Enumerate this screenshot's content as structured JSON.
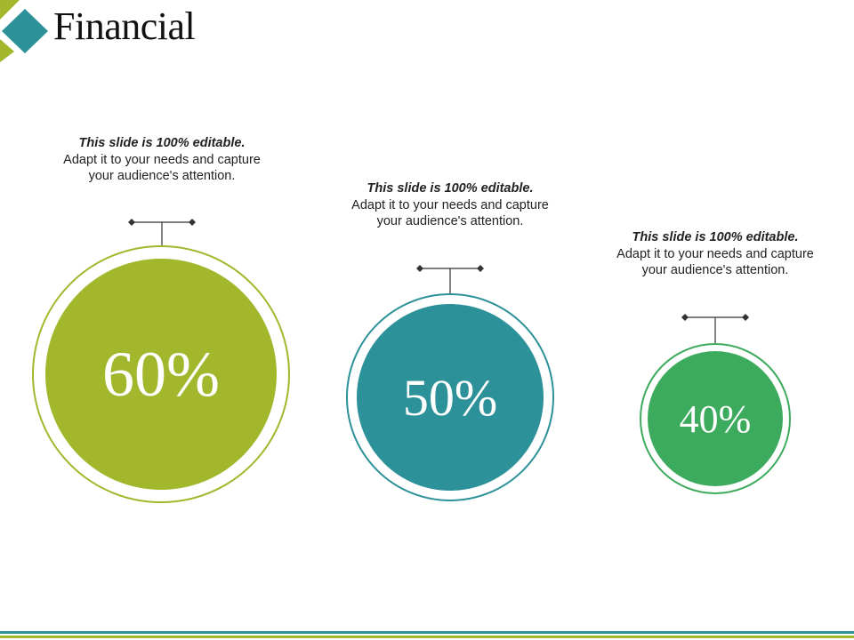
{
  "slide": {
    "title": "Financial"
  },
  "colors": {
    "olive": "#A2B72C",
    "teal": "#2C9199",
    "green": "#3DAB5E",
    "text": "#222222",
    "connector": "#333333"
  },
  "items": [
    {
      "value": "60%",
      "bold": "This slide is 100% editable.",
      "body": "Adapt it to your needs and capture your audience's attention.",
      "color": "#A2B72C"
    },
    {
      "value": "50%",
      "bold": "This slide is 100% editable.",
      "body": "Adapt it to your needs and capture your audience's attention.",
      "color": "#2C9199"
    },
    {
      "value": "40%",
      "bold": "This slide is 100% editable.",
      "body": "Adapt it to your needs and capture your audience's attention.",
      "color": "#3DAB5E"
    }
  ]
}
